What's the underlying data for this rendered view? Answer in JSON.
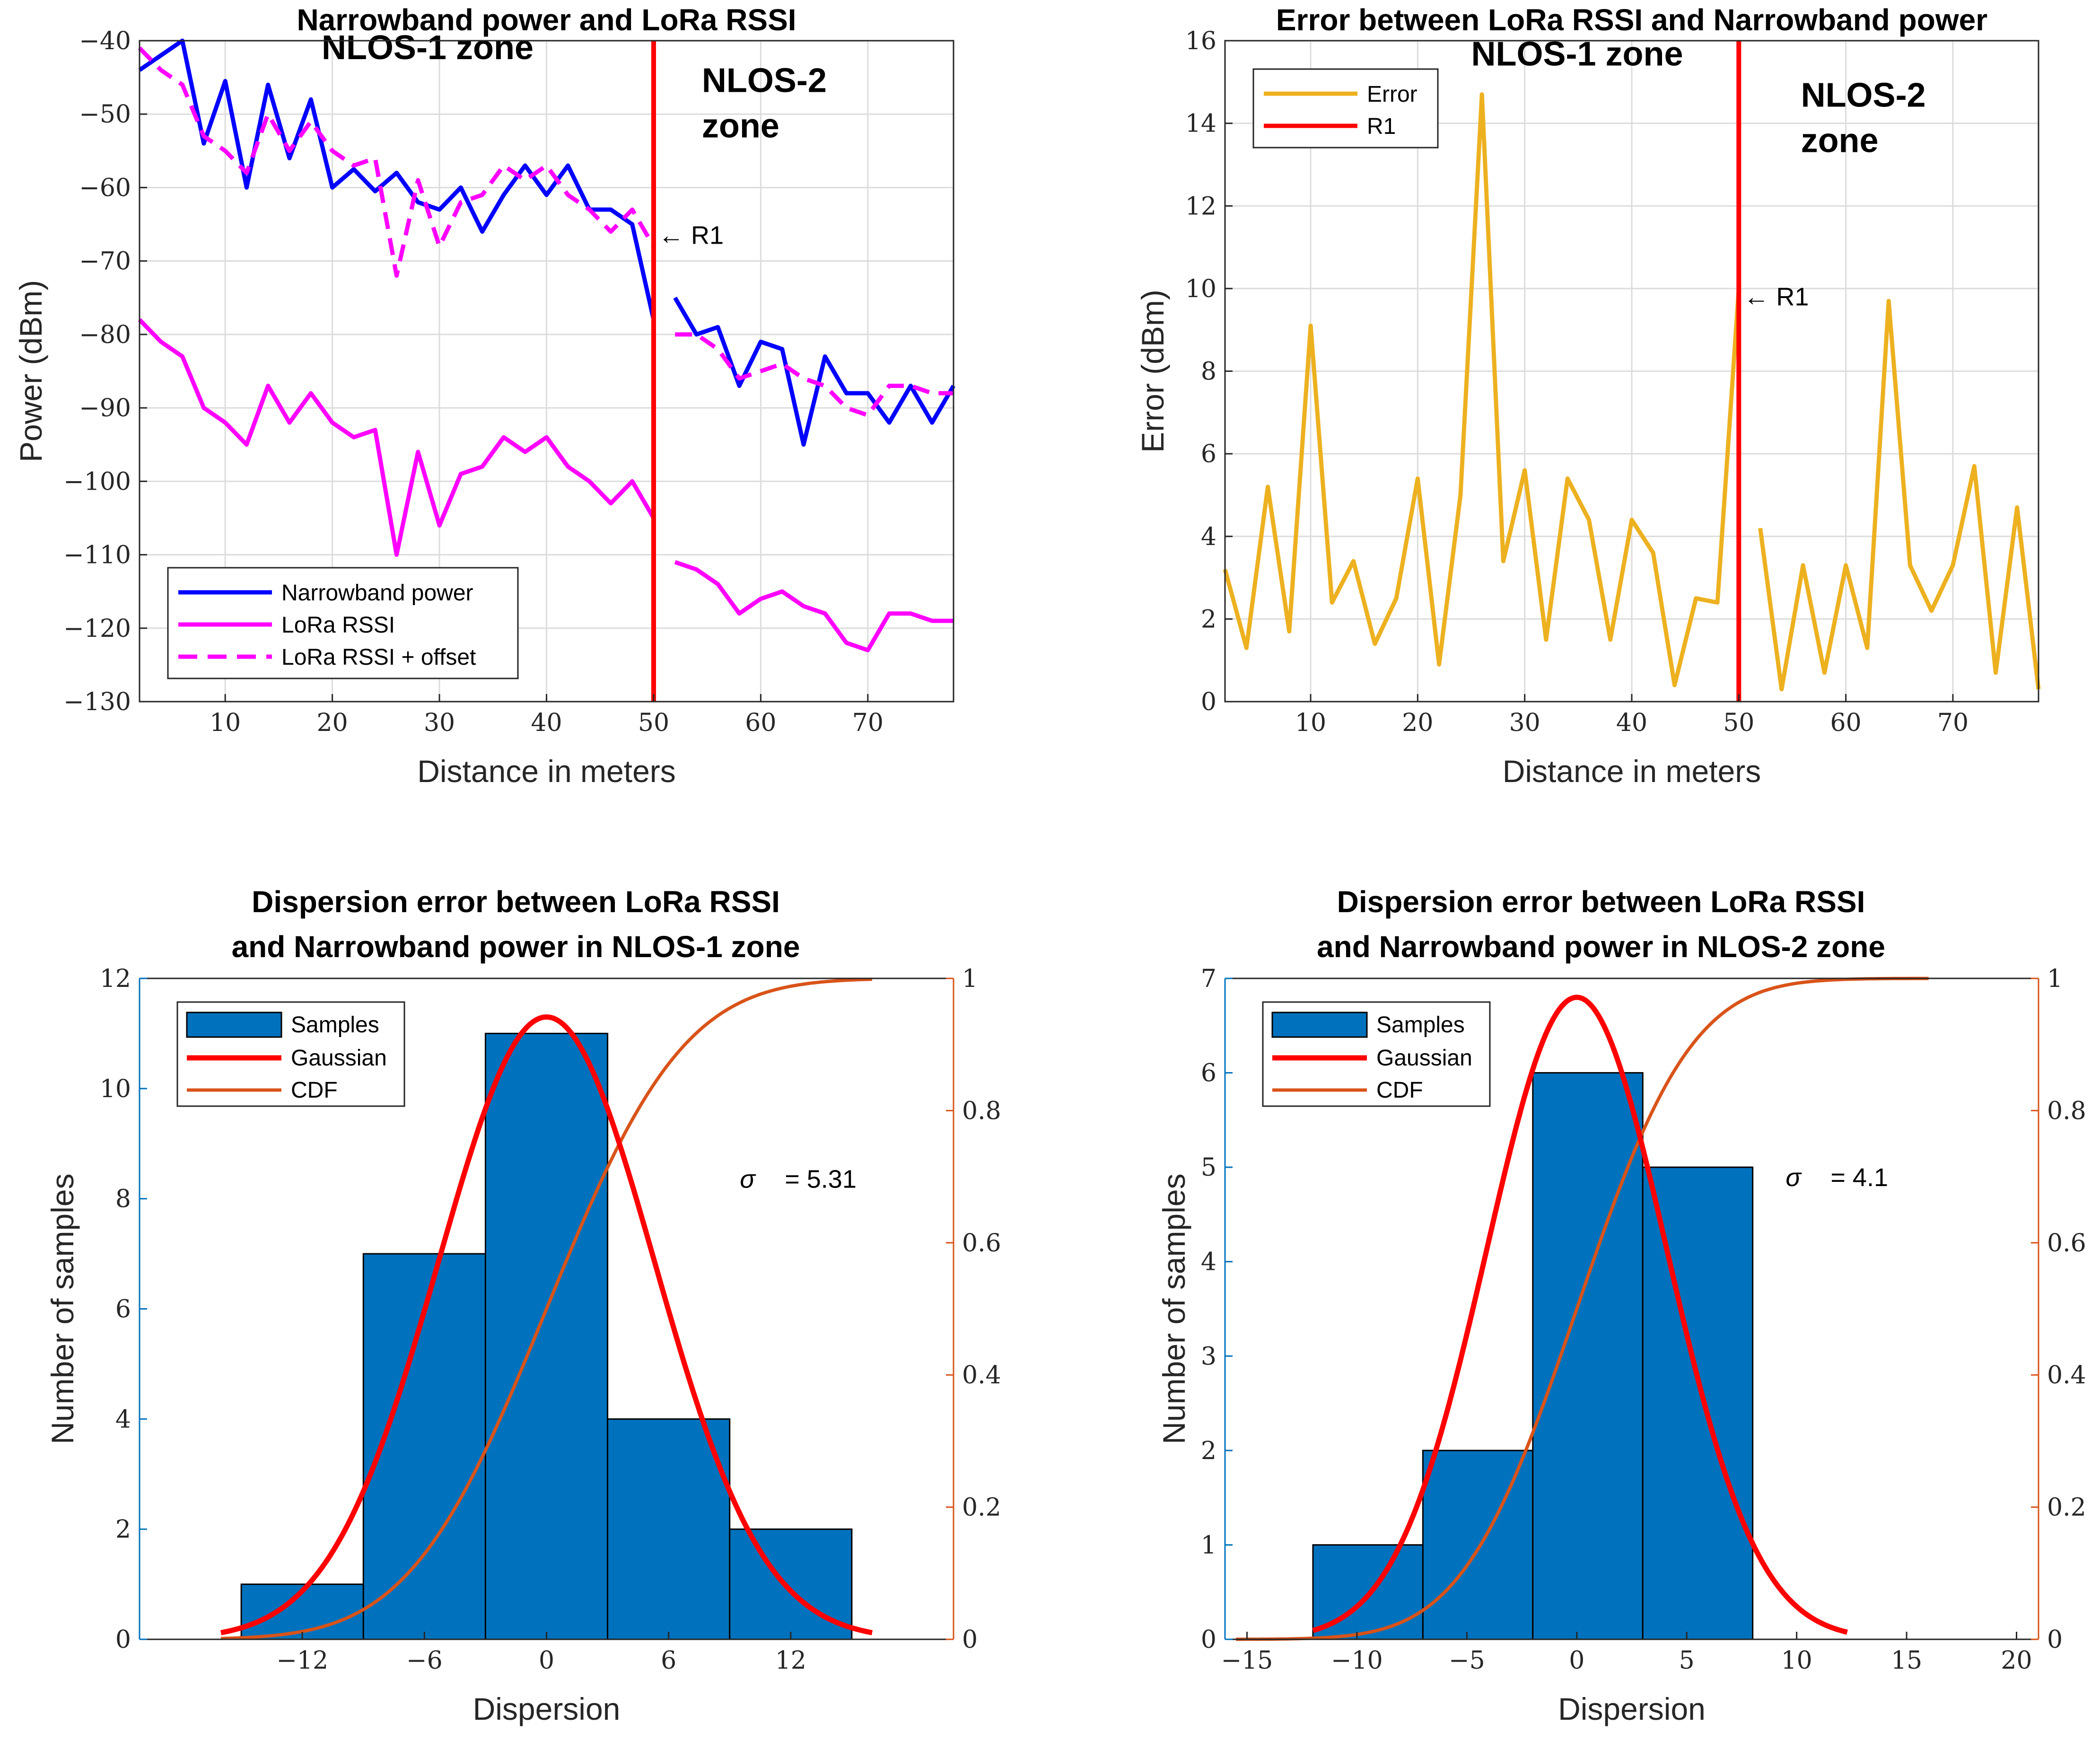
{
  "chart_data": [
    {
      "id": "p1",
      "type": "line",
      "title": "Narrowband power and LoRa RSSI",
      "xlabel": "Distance in meters",
      "ylabel": "Power (dBm)",
      "xlim": [
        2,
        78
      ],
      "ylim": [
        -130,
        -40
      ],
      "xticks": [
        10,
        20,
        30,
        40,
        50,
        60,
        70
      ],
      "yticks": [
        -130,
        -120,
        -110,
        -100,
        -90,
        -80,
        -70,
        -60,
        -50,
        -40
      ],
      "grid": true,
      "legend_position": "bottom-left",
      "series": [
        {
          "name": "Narrowband power",
          "color": "#0000ff",
          "dash": "solid",
          "x": [
            2,
            4,
            6,
            8,
            10,
            12,
            14,
            16,
            18,
            20,
            22,
            24,
            26,
            28,
            30,
            32,
            34,
            36,
            38,
            40,
            42,
            44,
            46,
            48,
            50,
            null,
            52,
            54,
            56,
            58,
            60,
            62,
            64,
            66,
            68,
            70,
            72,
            74,
            76,
            78
          ],
          "y": [
            -44,
            -42,
            -40,
            -54,
            -45.5,
            -60,
            -46,
            -56,
            -48,
            -60,
            -57.5,
            -60.5,
            -58,
            -62,
            -63,
            -60,
            -66,
            -61,
            -57,
            -61,
            -57,
            -63,
            -63,
            -65,
            -78,
            null,
            -75,
            -80,
            -79,
            -87,
            -81,
            -82,
            -95,
            -83,
            -88,
            -88,
            -92,
            -87,
            -92,
            -87
          ]
        },
        {
          "name": "LoRa RSSI",
          "color": "#ff00ff",
          "dash": "solid",
          "x": [
            2,
            4,
            6,
            8,
            10,
            12,
            14,
            16,
            18,
            20,
            22,
            24,
            26,
            28,
            30,
            32,
            34,
            36,
            38,
            40,
            42,
            44,
            46,
            48,
            50,
            null,
            52,
            54,
            56,
            58,
            60,
            62,
            64,
            66,
            68,
            70,
            72,
            74,
            76,
            78
          ],
          "y": [
            -78,
            -81,
            -83,
            -90,
            -92,
            -95,
            -87,
            -92,
            -88,
            -92,
            -94,
            -93,
            -110,
            -96,
            -106,
            -99,
            -98,
            -94,
            -96,
            -94,
            -98,
            -100,
            -103,
            -100,
            -105,
            null,
            -111,
            -112,
            -114,
            -118,
            -116,
            -115,
            -117,
            -118,
            -122,
            -123,
            -118,
            -118,
            -119,
            -119
          ]
        },
        {
          "name": "LoRa RSSI + offset",
          "color": "#ff00ff",
          "dash": "dashed",
          "x": [
            2,
            4,
            6,
            8,
            10,
            12,
            14,
            16,
            18,
            20,
            22,
            24,
            26,
            28,
            30,
            32,
            34,
            36,
            38,
            40,
            42,
            44,
            46,
            48,
            50,
            null,
            52,
            54,
            56,
            58,
            60,
            62,
            64,
            66,
            68,
            70,
            72,
            74,
            76,
            78
          ],
          "y": [
            -41,
            -44,
            -46,
            -53,
            -55,
            -58,
            -50,
            -55,
            -51,
            -55,
            -57,
            -56,
            -72,
            -59,
            -68,
            -62,
            -61,
            -57,
            -59,
            -57,
            -61,
            -63,
            -66,
            -63,
            -68,
            null,
            -80,
            -80,
            -82,
            -86,
            -85,
            -84,
            -86,
            -87,
            -90,
            -91,
            -87,
            -87,
            -88,
            -88
          ]
        }
      ],
      "vline": {
        "x": 50,
        "color": "#ff0000",
        "label": "← R1",
        "label_y": -66.5
      },
      "zones": [
        {
          "lines": [
            "NLOS-1 zone"
          ],
          "x": 19,
          "y": -42.5,
          "anchor": "start"
        },
        {
          "lines": [
            "NLOS-2",
            "zone"
          ],
          "x": 54.5,
          "y": -47,
          "anchor": "start"
        }
      ]
    },
    {
      "id": "p2",
      "type": "line",
      "title": "Error between LoRa RSSI and Narrowband power",
      "xlabel": "Distance in meters",
      "ylabel": "Error (dBm)",
      "xlim": [
        2,
        78
      ],
      "ylim": [
        0,
        16
      ],
      "xticks": [
        10,
        20,
        30,
        40,
        50,
        60,
        70
      ],
      "yticks": [
        0,
        2,
        4,
        6,
        8,
        10,
        12,
        14,
        16
      ],
      "grid": true,
      "legend_position": "top-left",
      "series": [
        {
          "name": "Error",
          "color": "#edb120",
          "dash": "solid",
          "x": [
            2,
            4,
            6,
            8,
            10,
            12,
            14,
            16,
            18,
            20,
            22,
            24,
            26,
            28,
            30,
            32,
            34,
            36,
            38,
            40,
            42,
            44,
            46,
            48,
            50,
            null,
            52,
            54,
            56,
            58,
            60,
            62,
            64,
            66,
            68,
            70,
            72,
            74,
            76,
            78
          ],
          "y": [
            3.2,
            1.3,
            5.2,
            1.7,
            9.1,
            2.4,
            3.4,
            1.4,
            2.5,
            5.4,
            0.9,
            5.0,
            14.7,
            3.4,
            5.6,
            1.5,
            5.4,
            4.4,
            1.5,
            4.4,
            3.6,
            0.4,
            2.5,
            2.4,
            10.0,
            null,
            4.2,
            0.3,
            3.3,
            0.7,
            3.3,
            1.3,
            9.7,
            3.3,
            2.2,
            3.3,
            5.7,
            0.7,
            4.7,
            0.3
          ]
        }
      ],
      "vline": {
        "x": 50,
        "color": "#ff0000",
        "name": "R1",
        "label": "← R1",
        "label_y": 9.8
      },
      "zones": [
        {
          "lines": [
            "NLOS-1 zone"
          ],
          "x": 25,
          "y": 15.4,
          "anchor": "start"
        },
        {
          "lines": [
            "NLOS-2",
            "zone"
          ],
          "x": 55.8,
          "y": 14.4,
          "anchor": "start"
        }
      ]
    },
    {
      "id": "p3",
      "type": "histogram",
      "title": "Dispersion error between LoRa RSSI",
      "title_line2": "and Narrowband power in NLOS-1 zone",
      "xlabel": "Dispersion",
      "ylabel": "Number of samples",
      "xlim": [
        -20,
        20
      ],
      "ylim": [
        0,
        12
      ],
      "y2lim": [
        0,
        1
      ],
      "xticks": [
        -12,
        -6,
        0,
        6,
        12
      ],
      "xtick_labels": [
        "−12",
        "−6",
        "0",
        "6",
        "12"
      ],
      "yticks": [
        0,
        2,
        4,
        6,
        8,
        10,
        12
      ],
      "y2ticks": [
        0,
        0.2,
        0.4,
        0.6,
        0.8,
        1
      ],
      "grid": false,
      "legend_position": "top-left",
      "bins": {
        "edges": [
          -15,
          -9,
          -3,
          3,
          9,
          15
        ],
        "counts": [
          1,
          7,
          11,
          4,
          2
        ],
        "name": "Samples",
        "color": "#0072bd"
      },
      "gaussian": {
        "name": "Gaussian",
        "color": "#ff0000",
        "x_range": [
          -16,
          16
        ],
        "peak": 11.3,
        "sigma": 5.31
      },
      "cdf": {
        "name": "CDF",
        "color": "#d95319",
        "x_range": [
          -16,
          16
        ],
        "sigma": 5.31
      },
      "sigma_label": {
        "symbol": "σ",
        "text": "= 5.31",
        "x": 9.5,
        "y": 8.2
      }
    },
    {
      "id": "p4",
      "type": "histogram",
      "title": "Dispersion error between LoRa RSSI",
      "title_line2": "and Narrowband power in NLOS-2 zone",
      "xlabel": "Dispersion",
      "ylabel": "Number of samples",
      "xlim": [
        -16,
        21
      ],
      "ylim": [
        0,
        7
      ],
      "y2lim": [
        0,
        1
      ],
      "xticks": [
        -15,
        -10,
        -5,
        0,
        5,
        10,
        15,
        20
      ],
      "xtick_labels": [
        "−15",
        "−10",
        "−5",
        "0",
        "5",
        "10",
        "15",
        "20"
      ],
      "yticks": [
        0,
        1,
        2,
        3,
        4,
        5,
        6,
        7
      ],
      "y2ticks": [
        0,
        0.2,
        0.4,
        0.6,
        0.8,
        1
      ],
      "grid": false,
      "legend_position": "top-left",
      "bins": {
        "edges": [
          -12,
          -7,
          -2,
          3,
          8
        ],
        "counts": [
          1,
          2,
          6,
          5
        ],
        "name": "Samples",
        "color": "#0072bd"
      },
      "gaussian": {
        "name": "Gaussian",
        "color": "#ff0000",
        "x_range": [
          -12,
          12.3
        ],
        "peak": 6.8,
        "sigma": 4.1
      },
      "cdf": {
        "name": "CDF",
        "color": "#d95319",
        "x_range": [
          -15.5,
          16
        ],
        "sigma": 4.1
      },
      "sigma_label": {
        "symbol": "σ",
        "text": "= 4.1",
        "x": 9.5,
        "y": 4.8
      }
    }
  ]
}
